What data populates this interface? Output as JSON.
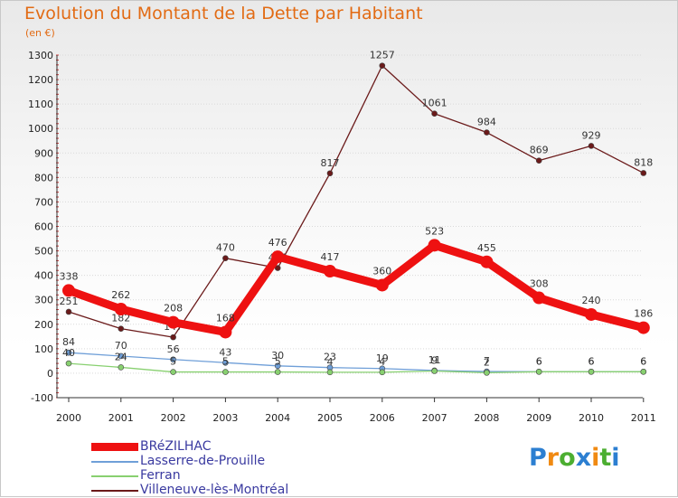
{
  "chart_data": {
    "type": "line",
    "title": "Evolution du Montant de la Dette par Habitant",
    "unit": "(en €)",
    "categories": [
      "2000",
      "2001",
      "2002",
      "2003",
      "2004",
      "2005",
      "2006",
      "2007",
      "2008",
      "2009",
      "2010",
      "2011"
    ],
    "ylim": [
      -100,
      1300
    ],
    "yticks": [
      -100,
      0,
      100,
      200,
      300,
      400,
      500,
      600,
      700,
      800,
      900,
      1000,
      1100,
      1200,
      1300
    ],
    "series": [
      {
        "name": "Villeneuve-lès-Montréal",
        "color": "#6b1a1a",
        "values": [
          251,
          182,
          147,
          470,
          430,
          817,
          1257,
          1061,
          984,
          869,
          929,
          818
        ]
      },
      {
        "name": "Lasserre-de-Prouille",
        "color": "#6f9fd8",
        "values": [
          84,
          70,
          56,
          43,
          30,
          23,
          19,
          11,
          7,
          6,
          6,
          6
        ]
      },
      {
        "name": "Ferran",
        "color": "#88d070",
        "values": [
          40,
          24,
          5,
          5,
          5,
          4,
          4,
          9,
          2,
          6,
          6,
          6
        ]
      },
      {
        "name": "BRéZILHAC",
        "color": "#ee1111",
        "values": [
          338,
          262,
          208,
          168,
          476,
          417,
          360,
          523,
          455,
          308,
          240,
          186
        ]
      }
    ],
    "legend_order": [
      "BRéZILHAC",
      "Lasserre-de-Prouille",
      "Ferran",
      "Villeneuve-lès-Montréal"
    ]
  },
  "logo": {
    "text": "Proxiti",
    "letters": [
      "P",
      "r",
      "o",
      "x",
      "i",
      "t",
      "i"
    ],
    "colors": [
      "#2c7fd1",
      "#f08a12",
      "#4cae31",
      "#2c7fd1",
      "#f08a12",
      "#4cae31",
      "#2c7fd1"
    ]
  }
}
